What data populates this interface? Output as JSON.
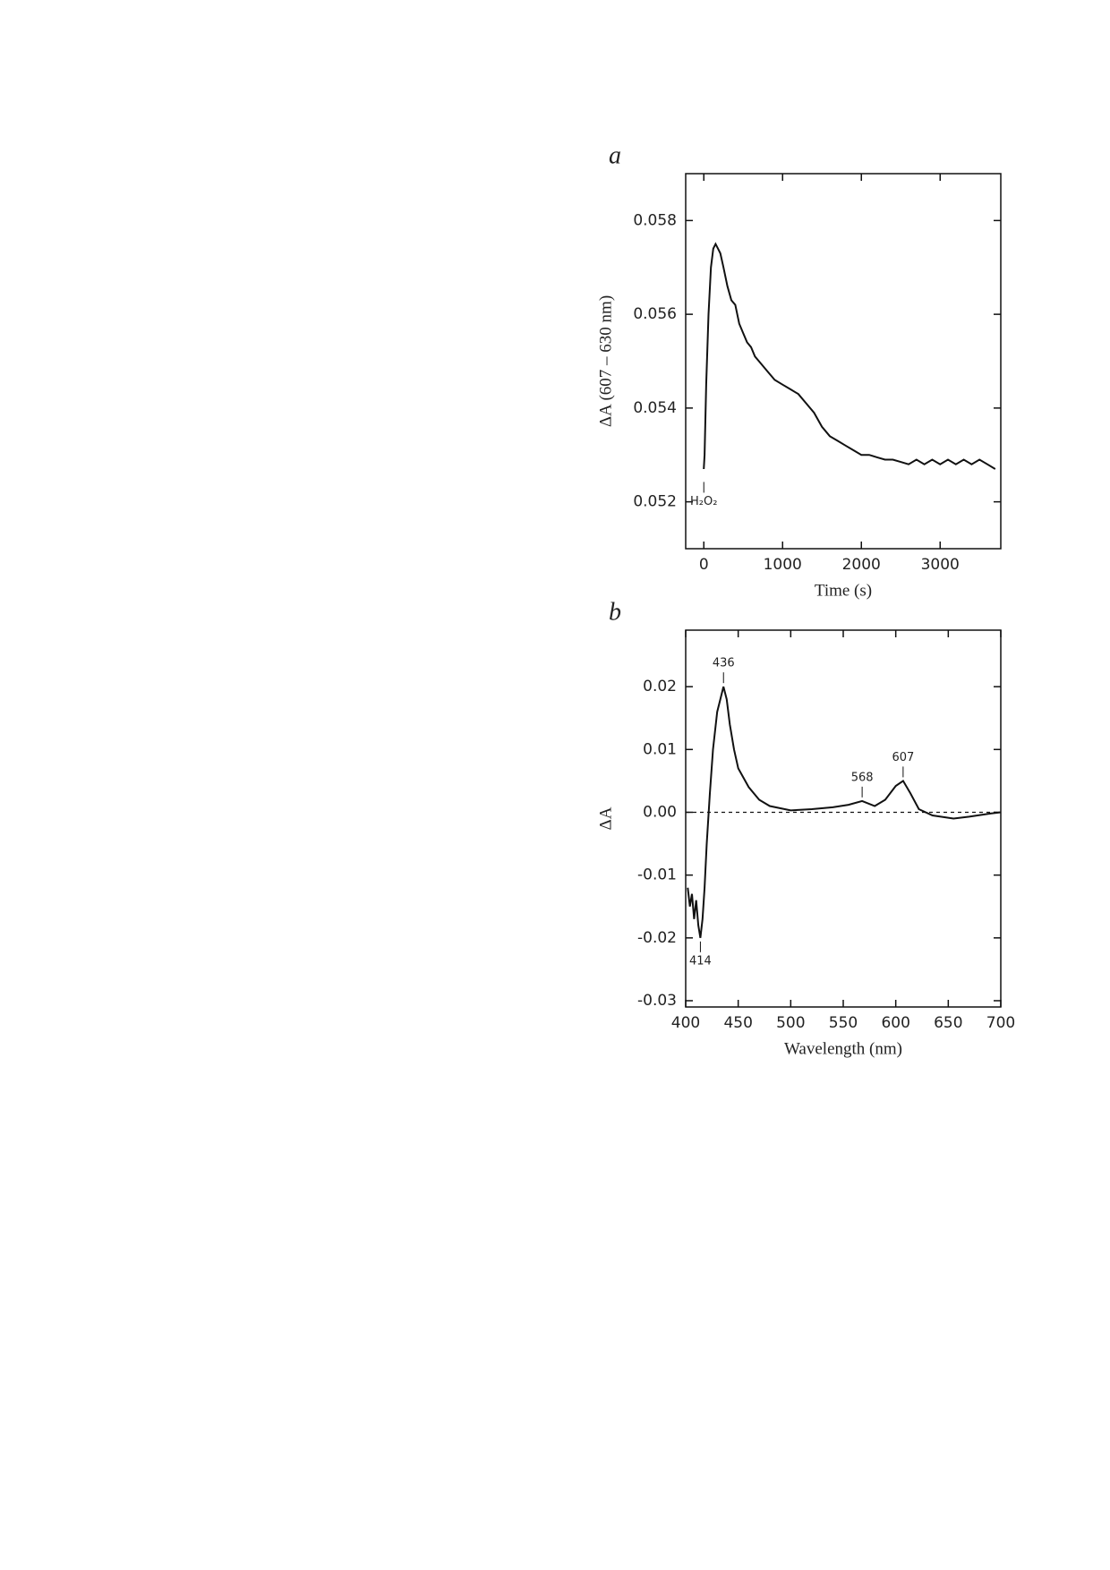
{
  "chart_data": [
    {
      "type": "line",
      "panel": "a",
      "x_label": "Time (s)",
      "y_label": "ΔA (607 – 630 nm)",
      "xlim": [
        -230,
        3770
      ],
      "ylim": [
        0.051,
        0.059
      ],
      "xticks": [
        0,
        1000,
        2000,
        3000
      ],
      "yticks": [
        0.052,
        0.054,
        0.056,
        0.058
      ],
      "series": [
        {
          "color": "#111111",
          "x": [
            0,
            10,
            30,
            60,
            90,
            120,
            150,
            180,
            210,
            250,
            300,
            350,
            400,
            450,
            500,
            550,
            600,
            650,
            700,
            800,
            900,
            1000,
            1100,
            1200,
            1300,
            1400,
            1500,
            1600,
            1700,
            1800,
            1900,
            2000,
            2100,
            2200,
            2300,
            2400,
            2500,
            2600,
            2700,
            2800,
            2900,
            3000,
            3100,
            3200,
            3300,
            3400,
            3500,
            3600,
            3700
          ],
          "values": [
            0.0527,
            0.053,
            0.0545,
            0.056,
            0.057,
            0.0574,
            0.0575,
            0.0574,
            0.0573,
            0.057,
            0.0566,
            0.0563,
            0.0562,
            0.0558,
            0.0556,
            0.0554,
            0.0553,
            0.0551,
            0.055,
            0.0548,
            0.0546,
            0.0545,
            0.0544,
            0.0543,
            0.0541,
            0.0539,
            0.0536,
            0.0534,
            0.0533,
            0.0532,
            0.0531,
            0.053,
            0.053,
            0.05295,
            0.0529,
            0.0529,
            0.05285,
            0.0528,
            0.0529,
            0.0528,
            0.0529,
            0.0528,
            0.0529,
            0.0528,
            0.0529,
            0.0528,
            0.0529,
            0.0528,
            0.0527
          ]
        }
      ],
      "annotations": [
        {
          "text": "H₂O₂",
          "x": 0,
          "y": 0.0525
        }
      ]
    },
    {
      "type": "line",
      "panel": "b",
      "x_label": "Wavelength (nm)",
      "y_label": "ΔA",
      "xlim": [
        400,
        700
      ],
      "ylim": [
        -0.031,
        0.029
      ],
      "xticks": [
        400,
        450,
        500,
        550,
        600,
        650,
        700
      ],
      "yticks": [
        -0.03,
        -0.02,
        -0.01,
        {
          "value": 0,
          "label": "0.00"
        },
        0.01,
        0.02
      ],
      "zero_line": true,
      "series": [
        {
          "color": "#111111",
          "x": [
            402,
            404,
            406,
            408,
            410,
            412,
            414,
            416,
            418,
            420,
            423,
            426,
            430,
            433,
            436,
            439,
            442,
            446,
            450,
            460,
            470,
            480,
            500,
            520,
            540,
            555,
            568,
            580,
            590,
            600,
            607,
            614,
            622,
            635,
            655,
            670,
            690,
            700
          ],
          "values": [
            -0.012,
            -0.015,
            -0.013,
            -0.017,
            -0.014,
            -0.018,
            -0.02,
            -0.017,
            -0.012,
            -0.005,
            0.003,
            0.01,
            0.016,
            0.018,
            0.02,
            0.018,
            0.014,
            0.01,
            0.007,
            0.004,
            0.002,
            0.001,
            0.0003,
            0.0005,
            0.0008,
            0.0012,
            0.0018,
            0.001,
            0.002,
            0.0042,
            0.005,
            0.003,
            0.0005,
            -0.0005,
            -0.001,
            -0.0007,
            -0.0002,
            0
          ]
        }
      ],
      "annotations": [
        {
          "text": "436",
          "x": 436,
          "y": 0.02
        },
        {
          "text": "414",
          "x": 414,
          "y": -0.02
        },
        {
          "text": "568",
          "x": 568,
          "y": 0.0018
        },
        {
          "text": "607",
          "x": 607,
          "y": 0.005
        }
      ]
    }
  ]
}
